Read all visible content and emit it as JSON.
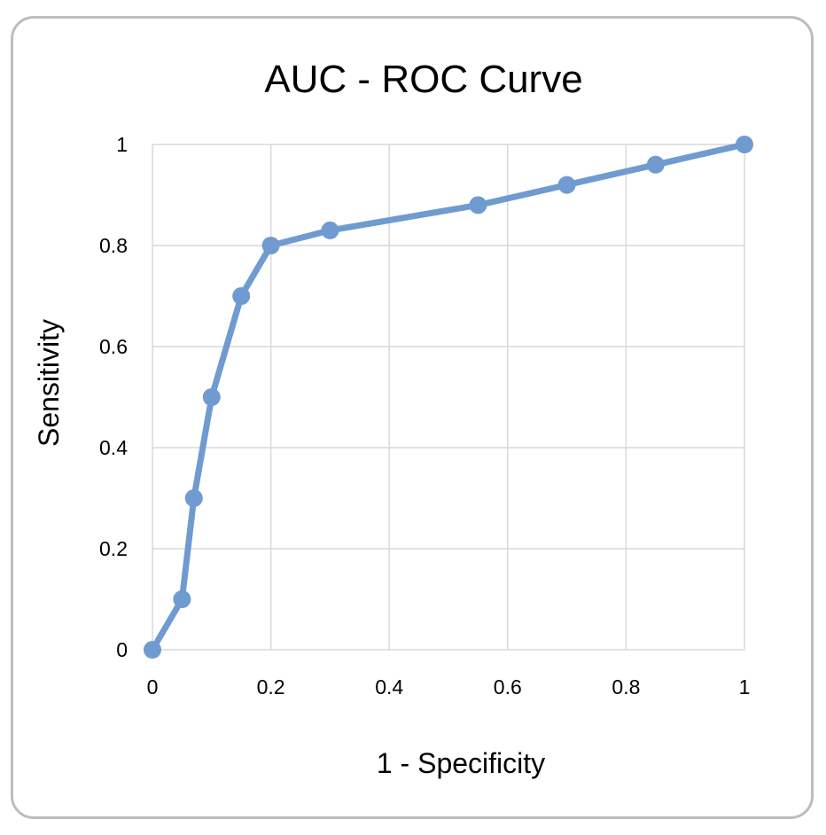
{
  "chart_data": {
    "type": "line",
    "title": "AUC - ROC Curve",
    "xlabel": "1 - Specificity",
    "ylabel": "Sensitivity",
    "xlim": [
      0,
      1
    ],
    "ylim": [
      0,
      1
    ],
    "xticks": [
      "0",
      "0.2",
      "0.4",
      "0.6",
      "0.8",
      "1"
    ],
    "yticks": [
      "0",
      "0.2",
      "0.4",
      "0.6",
      "0.8",
      "1"
    ],
    "grid": true,
    "legend": "none",
    "series": [
      {
        "color": "#6f9bd1",
        "x": [
          0,
          0.05,
          0.07,
          0.1,
          0.15,
          0.2,
          0.3,
          0.55,
          0.7,
          0.85,
          1
        ],
        "y": [
          0,
          0.1,
          0.3,
          0.5,
          0.7,
          0.8,
          0.83,
          0.88,
          0.92,
          0.96,
          1
        ]
      }
    ]
  }
}
